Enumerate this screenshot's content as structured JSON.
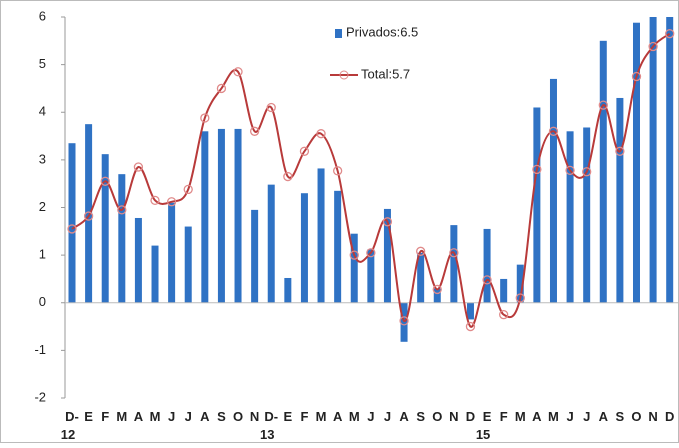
{
  "chart_data": {
    "type": "bar-line",
    "categories": [
      "D-\n12",
      "E",
      "F",
      "M",
      "A",
      "M",
      "J",
      "J",
      "A",
      "S",
      "O",
      "N",
      "D-\n13",
      "E",
      "F",
      "M",
      "A",
      "M",
      "J",
      "J",
      "A",
      "S",
      "O",
      "N",
      "D",
      "E\n15",
      "F",
      "M",
      "A",
      "M",
      "J",
      "J",
      "A",
      "S",
      "O",
      "N",
      "D"
    ],
    "series": [
      {
        "name": "Privados:6.5",
        "type": "bar",
        "color": "#2f72c4",
        "values": [
          3.35,
          3.75,
          3.12,
          2.7,
          1.78,
          1.2,
          2.1,
          1.6,
          3.6,
          3.65,
          3.65,
          1.95,
          2.48,
          0.52,
          2.3,
          2.82,
          2.35,
          1.45,
          1.12,
          1.97,
          -0.82,
          1.05,
          0.3,
          1.63,
          -0.35,
          1.55,
          0.5,
          0.8,
          4.1,
          4.7,
          3.6,
          3.68,
          5.5,
          4.3,
          5.88,
          6.2,
          6.5
        ]
      },
      {
        "name": "Total:5.7",
        "type": "line",
        "color": "#b83a3a",
        "values": [
          1.55,
          1.82,
          2.55,
          1.95,
          2.85,
          2.15,
          2.12,
          2.38,
          3.88,
          4.5,
          4.85,
          3.6,
          4.1,
          2.65,
          3.18,
          3.55,
          2.77,
          1.0,
          1.05,
          1.7,
          -0.38,
          1.08,
          0.28,
          1.05,
          -0.5,
          0.48,
          -0.25,
          0.1,
          2.8,
          3.6,
          2.78,
          2.75,
          4.15,
          3.18,
          4.75,
          5.38,
          5.65
        ]
      }
    ],
    "ylim": [
      -2,
      6
    ],
    "yticks": [
      -2,
      -1,
      0,
      1,
      2,
      3,
      4,
      5,
      6
    ],
    "grid": false
  }
}
